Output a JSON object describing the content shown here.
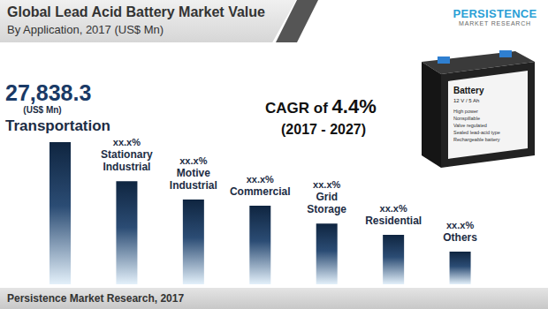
{
  "chart_data": {
    "type": "bar",
    "title": "Global Lead Acid Battery Market Value",
    "subtitle": "By Application, 2017 (US$ Mn)",
    "categories": [
      "Transportation",
      "Stationary Industrial",
      "Motive Industrial",
      "Commercial",
      "Grid Storage",
      "Residential",
      "Others"
    ],
    "values": [
      27838.3,
      20200,
      16600,
      15400,
      11900,
      9700,
      6400
    ],
    "value_labels": [
      "27,838.3",
      "xx.x%",
      "xx.x%",
      "xx.x%",
      "xx.x%",
      "xx.x%",
      "xx.x%"
    ],
    "unit_label": "(US$ Mn)",
    "color": "#0f2540",
    "data_labels": true,
    "tick_labels": false,
    "grid": false,
    "cagr": {
      "text": "CAGR of",
      "rate": "4.4%",
      "period": "(2017 - 2027)"
    },
    "logo": [
      "PERSISTENCE",
      "MARKET RESEARCH"
    ],
    "battery_label": [
      "Battery",
      "12 V / 5 Ah",
      "High power",
      "Nonspillable",
      "Valve regulated",
      "Sealed lead-acid type",
      "Rechargeable battery"
    ],
    "source": "Persistence Market Research, 2017"
  }
}
